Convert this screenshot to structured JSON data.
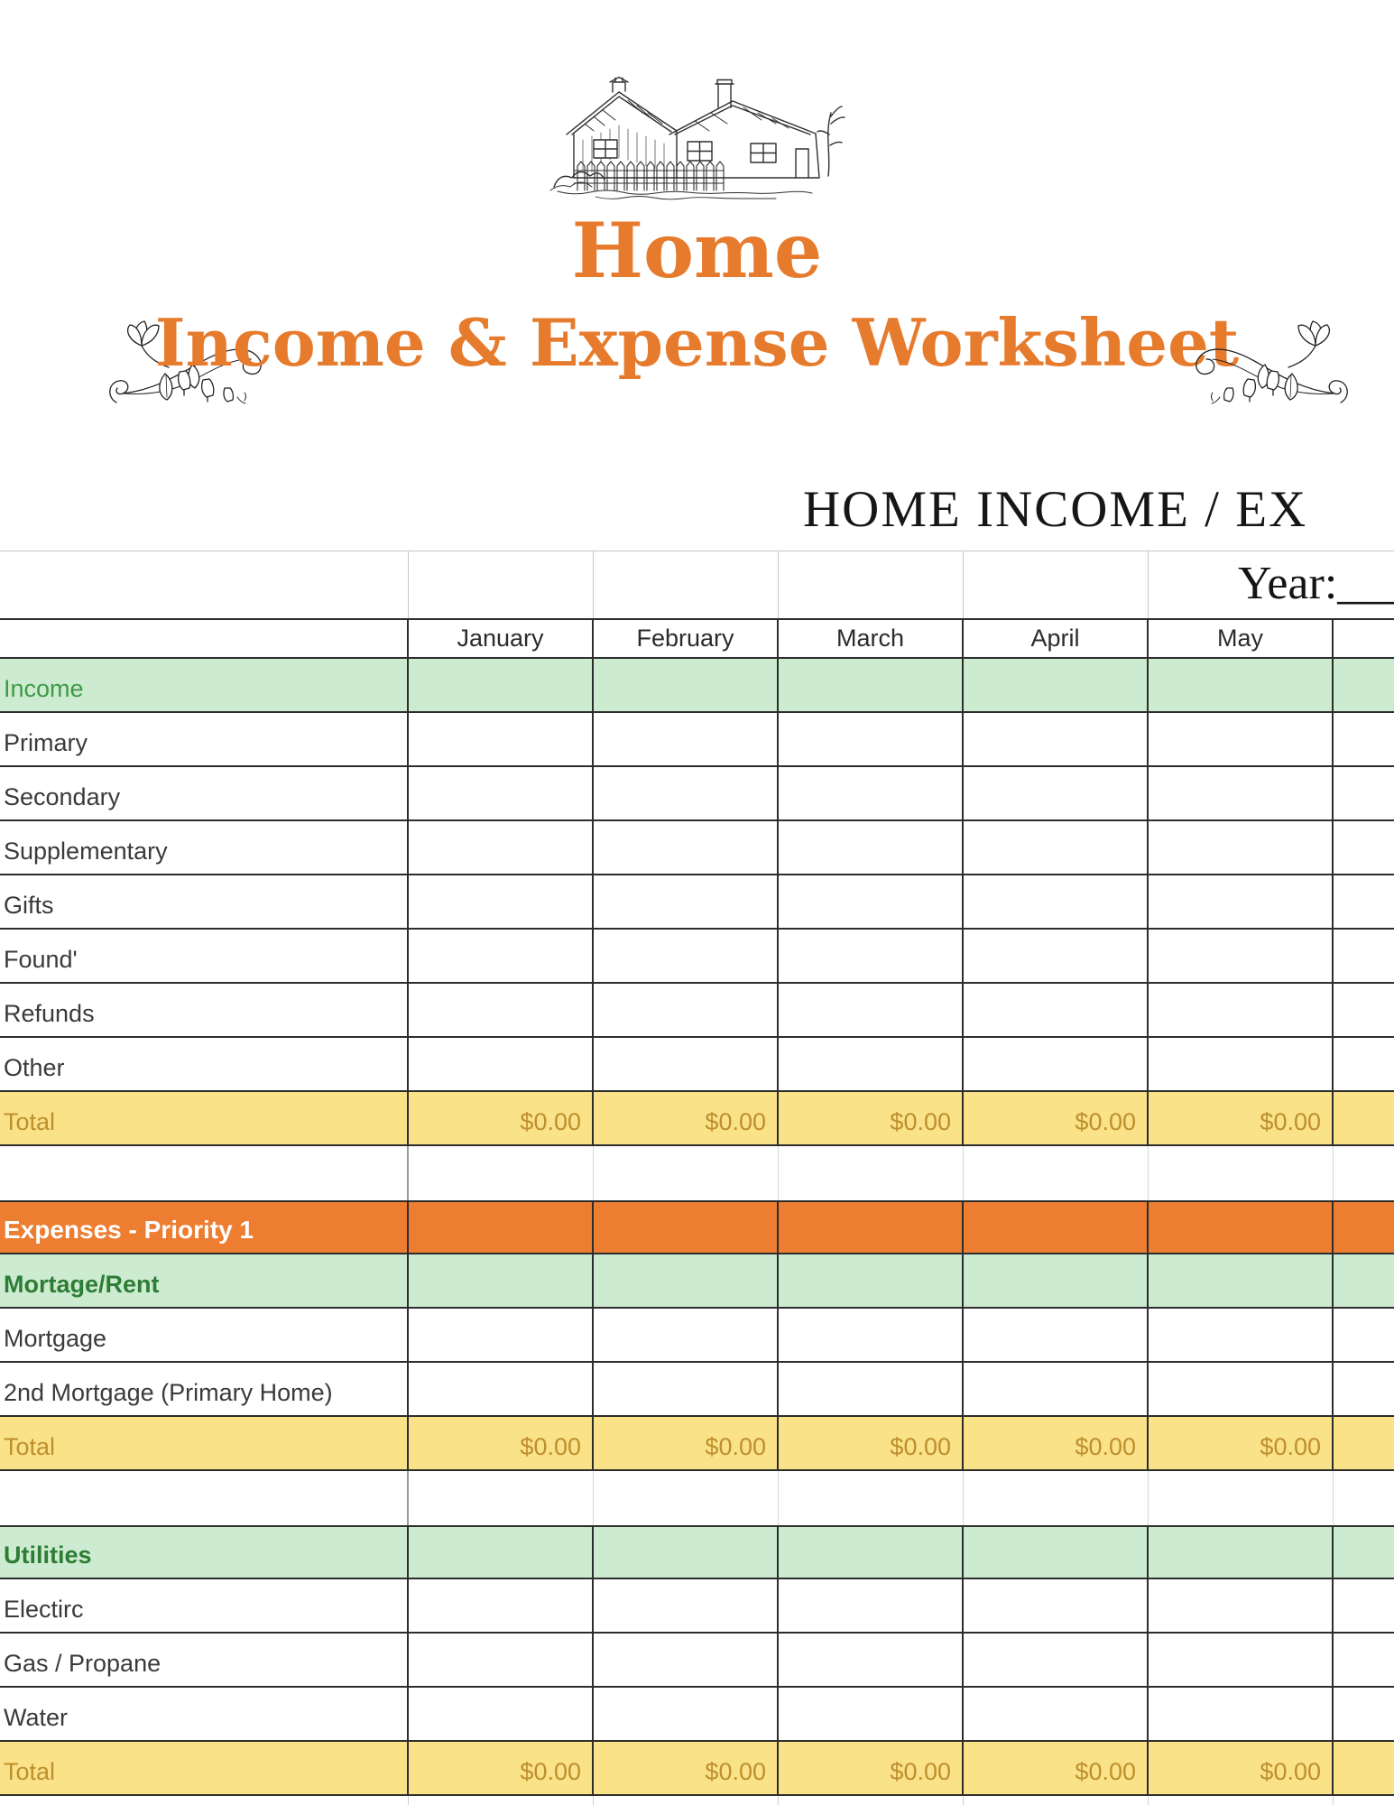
{
  "colors": {
    "accent-orange": "#E77B2D",
    "orange-row-bg": "#ED7D31",
    "green-row-bg": "#CDEBD0",
    "green-text-light": "#3F9A43",
    "green-text-dark": "#2E7D36",
    "yellow-row-bg": "#FAE289",
    "gold-text": "#BE8F2D",
    "grid-line": "#2D2D2D",
    "grid-line-light": "#C9C9C9",
    "label-text": "#3A3A3A",
    "header-text": "#2B2B2B"
  },
  "header": {
    "title": "Home",
    "subtitle": "Income & Expense Worksheet",
    "house_icon": "house-sketch",
    "flourish_icon": "floral-flourish"
  },
  "sheet": {
    "title": "HOME INCOME / EX",
    "year_label": "Year:___"
  },
  "table": {
    "months": [
      "January",
      "February",
      "March",
      "April",
      "May"
    ],
    "rows": [
      {
        "type": "section-green",
        "tone": "light",
        "label": "Income"
      },
      {
        "type": "item",
        "label": "Primary"
      },
      {
        "type": "item",
        "label": "Secondary"
      },
      {
        "type": "item",
        "label": "Supplementary"
      },
      {
        "type": "item",
        "label": "Gifts"
      },
      {
        "type": "item",
        "label": "Found'"
      },
      {
        "type": "item",
        "label": "Refunds"
      },
      {
        "type": "item",
        "label": "Other"
      },
      {
        "type": "total",
        "label": "Total",
        "values": [
          "$0.00",
          "$0.00",
          "$0.00",
          "$0.00",
          "$0.00"
        ]
      },
      {
        "type": "blank"
      },
      {
        "type": "section-orange",
        "label": "Expenses - Priority 1"
      },
      {
        "type": "section-green",
        "tone": "dark",
        "label": "Mortage/Rent"
      },
      {
        "type": "item",
        "label": "Mortgage"
      },
      {
        "type": "item",
        "label": "2nd Mortgage (Primary Home)"
      },
      {
        "type": "total",
        "label": "Total",
        "values": [
          "$0.00",
          "$0.00",
          "$0.00",
          "$0.00",
          "$0.00"
        ]
      },
      {
        "type": "blank"
      },
      {
        "type": "section-green",
        "tone": "dark",
        "label": "Utilities"
      },
      {
        "type": "item",
        "label": "Electirc"
      },
      {
        "type": "item",
        "label": "Gas / Propane"
      },
      {
        "type": "item",
        "label": "Water"
      },
      {
        "type": "total",
        "label": "Total",
        "values": [
          "$0.00",
          "$0.00",
          "$0.00",
          "$0.00",
          "$0.00"
        ]
      }
    ]
  }
}
